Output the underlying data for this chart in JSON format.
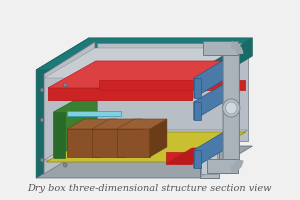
{
  "caption": "Dry box three-dimensional structure section view",
  "caption_fontsize": 7.0,
  "caption_color": "#555555",
  "bg_color": "#f0f0f0",
  "colors": {
    "teal_dark": "#1a6a68",
    "teal_mid": "#1e7a78",
    "teal_light": "#2a8a88",
    "gray_wall": "#9aa2aa",
    "gray_inner": "#b8bec6",
    "gray_light": "#c8cdd4",
    "gray_floor": "#a0a8b0",
    "gray_door": "#a8b0b8",
    "gray_pipe": "#aab2ba",
    "blue_panel": "#4a7aaa",
    "blue_dark": "#2a5888",
    "red_dark": "#bb1a1a",
    "red_mid": "#cc2424",
    "red_light": "#dd4040",
    "green_dark": "#2a6a28",
    "green_mid": "#3a8030",
    "yellow": "#c8c030",
    "brown_dark": "#6a3c18",
    "brown_mid": "#8a5028",
    "brown_light": "#9a6035",
    "cyan": "#80d0e0",
    "white": "#f0f4f8"
  }
}
